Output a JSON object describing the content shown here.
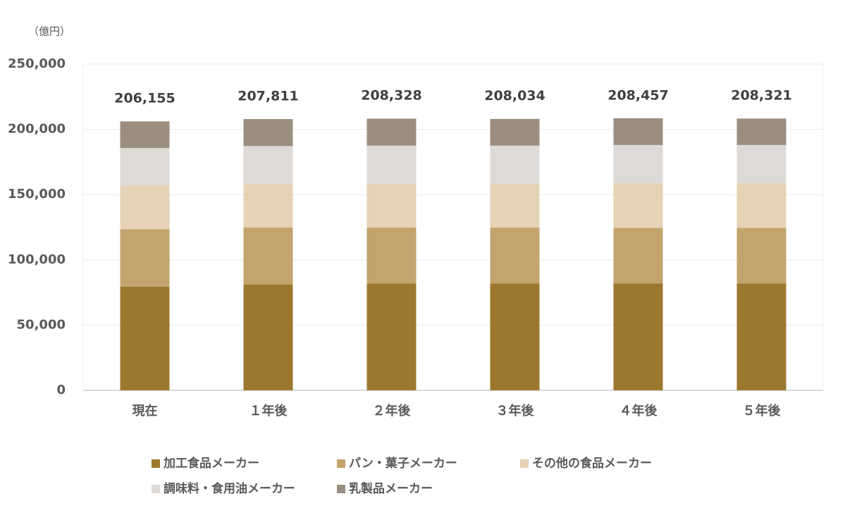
{
  "chart_data": {
    "type": "stacked_bar",
    "unit_label": "（億円）",
    "categories": [
      "現在",
      "１年後",
      "２年後",
      "３年後",
      "４年後",
      "５年後"
    ],
    "series": [
      {
        "name": "加工食品メーカー",
        "color": "#9c782e",
        "values": [
          79500,
          81000,
          81800,
          81800,
          82000,
          82000
        ]
      },
      {
        "name": "パン・菓子メーカー",
        "color": "#c3a46d",
        "values": [
          43900,
          43800,
          43000,
          43000,
          42600,
          42500
        ]
      },
      {
        "name": "その他の食品メーカー",
        "color": "#e6d2b5",
        "values": [
          33300,
          33600,
          33500,
          33600,
          34200,
          34300
        ]
      },
      {
        "name": "調味料・食用油メーカー",
        "color": "#dedad7",
        "values": [
          29000,
          28800,
          29200,
          29100,
          29200,
          29200
        ]
      },
      {
        "name": "乳製品メーカー",
        "color": "#9b8e80",
        "values": [
          20400,
          20700,
          20700,
          20500,
          20500,
          20300
        ]
      }
    ],
    "totals": {
      "values": [
        206155,
        207811,
        208328,
        208034,
        208457,
        208321
      ],
      "value_labels": [
        "206,155",
        "207,811",
        "208,328",
        "208,034",
        "208,457",
        "208,321"
      ]
    },
    "ylim": [
      0,
      250000
    ],
    "yticks": [
      0,
      {
        "value": 50000,
        "label": "50,000"
      },
      {
        "value": 100000,
        "label": "100,000"
      },
      {
        "value": 150000,
        "label": "150,000"
      },
      {
        "value": 200000,
        "label": "200,000"
      },
      {
        "value": 250000,
        "label": "250,000"
      }
    ],
    "grid": true,
    "legend_position": "bottom"
  }
}
